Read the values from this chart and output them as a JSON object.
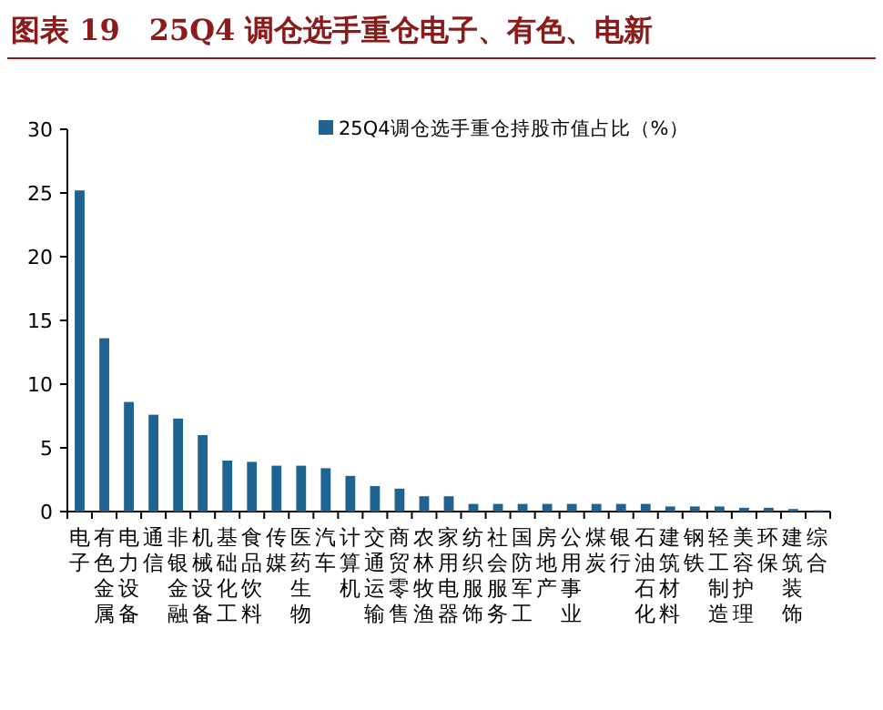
{
  "chart_data": {
    "type": "bar",
    "title": "图表 19　25Q4 调仓选手重仓电子、有色、电新",
    "categories": [
      "电子",
      "有色金属",
      "电力设备",
      "通信",
      "非银金融",
      "机械设备",
      "基础化工",
      "食品饮料",
      "传媒",
      "医药生物",
      "汽车",
      "计算机",
      "交通运输",
      "商贸零售",
      "农林牧渔",
      "家用电器",
      "纺织服饰",
      "社会服务",
      "国防军工",
      "房地产",
      "公用事业",
      "煤炭",
      "银行",
      "石油石化",
      "建筑材料",
      "钢铁",
      "轻工制造",
      "美容护理",
      "环保",
      "建筑装饰",
      "综合"
    ],
    "series": [
      {
        "name": "25Q4调仓选手重仓持股市值占比（%）",
        "color": "#1f6391",
        "values": [
          25.2,
          13.6,
          8.6,
          7.6,
          7.3,
          6.0,
          4.0,
          3.9,
          3.6,
          3.6,
          3.4,
          2.8,
          2.0,
          1.8,
          1.2,
          1.2,
          0.6,
          0.6,
          0.6,
          0.6,
          0.6,
          0.6,
          0.6,
          0.6,
          0.4,
          0.4,
          0.4,
          0.3,
          0.3,
          0.2,
          0.1
        ]
      }
    ],
    "ylim": [
      0,
      30
    ],
    "yticks": [
      0,
      5,
      10,
      15,
      20,
      25,
      30
    ],
    "grid": false,
    "legend": "top right"
  }
}
